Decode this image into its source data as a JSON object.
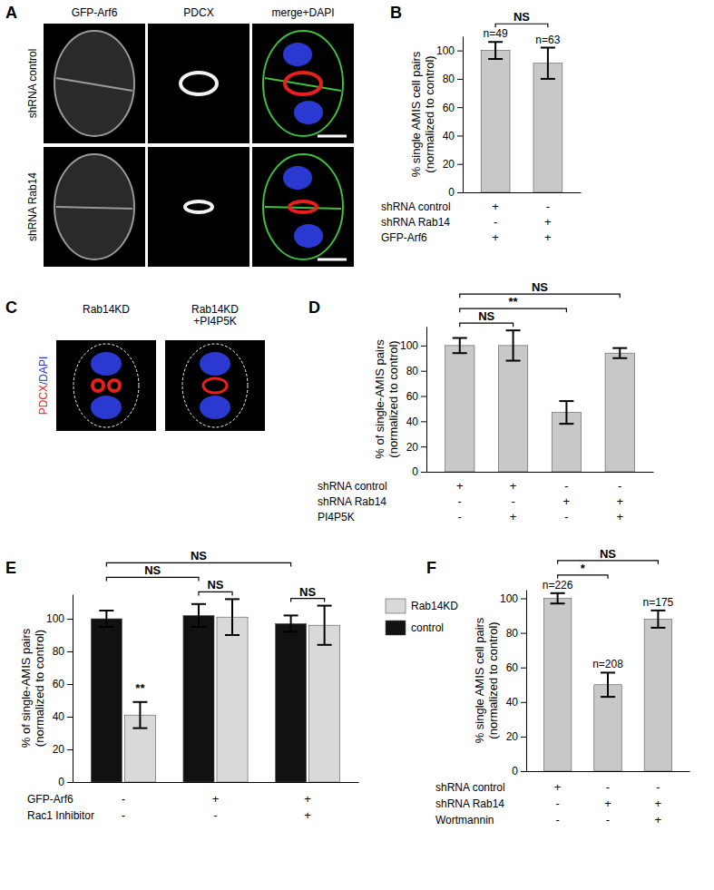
{
  "chart_data": [
    {
      "type": "bar",
      "title": "B",
      "y_label": "% single AMIS cell pairs\n(normalized to control)",
      "categories": [
        null,
        null
      ],
      "values": [
        100,
        91
      ],
      "errors": [
        6,
        11
      ],
      "n_labels": [
        "n=49",
        "n=63"
      ],
      "color": "#c8c8c8",
      "ylim": [
        0,
        110
      ],
      "yticks": [
        0,
        20,
        40,
        60,
        80,
        100
      ],
      "annotations": [
        {
          "text": "NS",
          "from": 0,
          "to": 1
        }
      ],
      "conditions": [
        {
          "label": "shRNA control",
          "values": [
            "+",
            "-"
          ]
        },
        {
          "label": "shRNA Rab14",
          "values": [
            "-",
            "+"
          ]
        },
        {
          "label": "GFP-Arf6",
          "values": [
            "+",
            "+"
          ]
        }
      ]
    },
    {
      "type": "bar",
      "title": "D",
      "y_label": "% of single-AMIS pairs\n(normalized to control)",
      "categories": [
        null,
        null,
        null,
        null
      ],
      "values": [
        100,
        100,
        47,
        94
      ],
      "errors": [
        6,
        12,
        9,
        4
      ],
      "color": "#c8c8c8",
      "ylim": [
        0,
        115
      ],
      "yticks": [
        0,
        20,
        40,
        60,
        80,
        100
      ],
      "annotations": [
        {
          "text": "NS",
          "from": 0,
          "to": 1
        },
        {
          "text": "**",
          "from": 0,
          "to": 2
        },
        {
          "text": "NS",
          "from": 0,
          "to": 3
        }
      ],
      "conditions": [
        {
          "label": "shRNA control",
          "values": [
            "+",
            "+",
            "-",
            "-"
          ]
        },
        {
          "label": "shRNA Rab14",
          "values": [
            "-",
            "-",
            "+",
            "+"
          ]
        },
        {
          "label": "PI4P5K",
          "values": [
            "-",
            "+",
            "-",
            "+"
          ]
        }
      ]
    },
    {
      "type": "bar",
      "title": "E",
      "y_label": "% of single-AMIS pairs\n(normalized to control)",
      "categories": [
        null,
        null,
        null
      ],
      "series": [
        {
          "name": "control",
          "color": "#111111",
          "values": [
            100,
            102,
            97
          ],
          "errors": [
            5,
            7,
            5
          ]
        },
        {
          "name": "Rab14KD",
          "color": "#d9d9d9",
          "values": [
            41,
            101,
            96
          ],
          "errors": [
            8,
            11,
            12
          ]
        }
      ],
      "legend": "right",
      "ylim": [
        0,
        115
      ],
      "yticks": [
        0,
        20,
        40,
        60,
        80,
        100
      ],
      "annotations": [
        {
          "text": "**",
          "from": 1,
          "to": 1
        },
        {
          "text": "NS",
          "from": 2,
          "to": 3
        },
        {
          "text": "NS",
          "from": 4,
          "to": 5
        },
        {
          "text": "NS",
          "from": 0,
          "to": 2
        },
        {
          "text": "NS",
          "from": 0,
          "to": 4
        }
      ],
      "conditions": [
        {
          "label": "GFP-Arf6",
          "values": [
            "-",
            "+",
            "+"
          ]
        },
        {
          "label": "Rac1 Inhibitor",
          "values": [
            "-",
            "-",
            "+"
          ]
        }
      ]
    },
    {
      "type": "bar",
      "title": "F",
      "y_label": "% single AMIS cell pairs\n(normalized to control)",
      "categories": [
        null,
        null,
        null
      ],
      "values": [
        100,
        50,
        88
      ],
      "errors": [
        3,
        7,
        5
      ],
      "n_labels": [
        "n=226",
        "n=208",
        "n=175"
      ],
      "color": "#c8c8c8",
      "ylim": [
        0,
        105
      ],
      "yticks": [
        0,
        20,
        40,
        60,
        80,
        100
      ],
      "annotations": [
        {
          "text": "*",
          "from": 0,
          "to": 1
        },
        {
          "text": "NS",
          "from": 0,
          "to": 2
        }
      ],
      "conditions": [
        {
          "label": "shRNA control",
          "values": [
            "+",
            "-",
            "-"
          ]
        },
        {
          "label": "shRNA Rab14",
          "values": [
            "-",
            "+",
            "+"
          ]
        },
        {
          "label": "Wortmannin",
          "values": [
            "-",
            "-",
            "+"
          ]
        }
      ]
    }
  ],
  "images": {
    "A": {
      "title": "A",
      "columns": [
        "GFP-Arf6",
        "PDCX",
        "merge+DAPI"
      ],
      "rows": [
        "shRNA control",
        "shRNA Rab14"
      ]
    },
    "C": {
      "title": "C",
      "columns": [
        "Rab14KD",
        "Rab14KD\n+PI4P5K"
      ],
      "stain_labels": [
        {
          "text": "PDCX",
          "color": "#e8201c"
        },
        {
          "text": "/DAPI",
          "color": "#2a3ad0"
        }
      ]
    }
  }
}
